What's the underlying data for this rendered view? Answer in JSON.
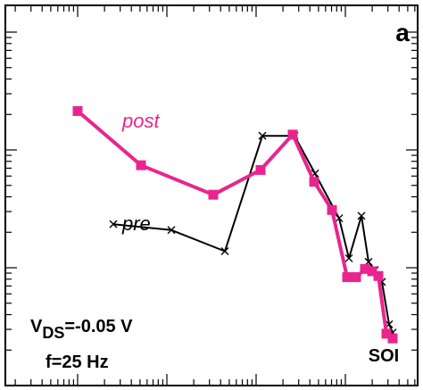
{
  "chart_data": {
    "type": "line",
    "panel_label": "a",
    "xscale": "log",
    "yscale": "log",
    "grid": false,
    "legend": "inline",
    "series": [
      {
        "name": "post",
        "color": "#e8258f",
        "marker": "square",
        "points": [
          [
            0.0,
            2.33
          ],
          [
            0.71,
            1.87
          ],
          [
            1.52,
            1.62
          ],
          [
            2.05,
            1.83
          ],
          [
            2.41,
            2.13
          ],
          [
            2.65,
            1.73
          ],
          [
            2.85,
            1.49
          ],
          [
            3.02,
            0.92
          ],
          [
            3.12,
            0.92
          ],
          [
            3.22,
            0.99
          ],
          [
            3.3,
            0.97
          ],
          [
            3.37,
            0.93
          ],
          [
            3.46,
            0.44
          ],
          [
            3.53,
            0.4
          ]
        ]
      },
      {
        "name": "pre",
        "color": "#000000",
        "marker": "x",
        "points": [
          [
            0.4,
            1.37
          ],
          [
            1.05,
            1.32
          ],
          [
            1.65,
            1.14
          ],
          [
            2.07,
            2.12
          ],
          [
            2.43,
            2.12
          ],
          [
            2.66,
            1.8
          ],
          [
            2.93,
            1.42
          ],
          [
            3.04,
            1.08
          ],
          [
            3.18,
            1.44
          ],
          [
            3.26,
            1.05
          ],
          [
            3.33,
            0.98
          ],
          [
            3.41,
            0.88
          ],
          [
            3.49,
            0.52
          ],
          [
            3.53,
            0.45
          ]
        ]
      }
    ],
    "annotations": {
      "vds_main": "V",
      "vds_sub": "DS",
      "vds_rest": "=-0.05 V",
      "freq": "f=25 Hz",
      "material": "SOI"
    },
    "label_post": "post",
    "label_pre": "pre"
  }
}
